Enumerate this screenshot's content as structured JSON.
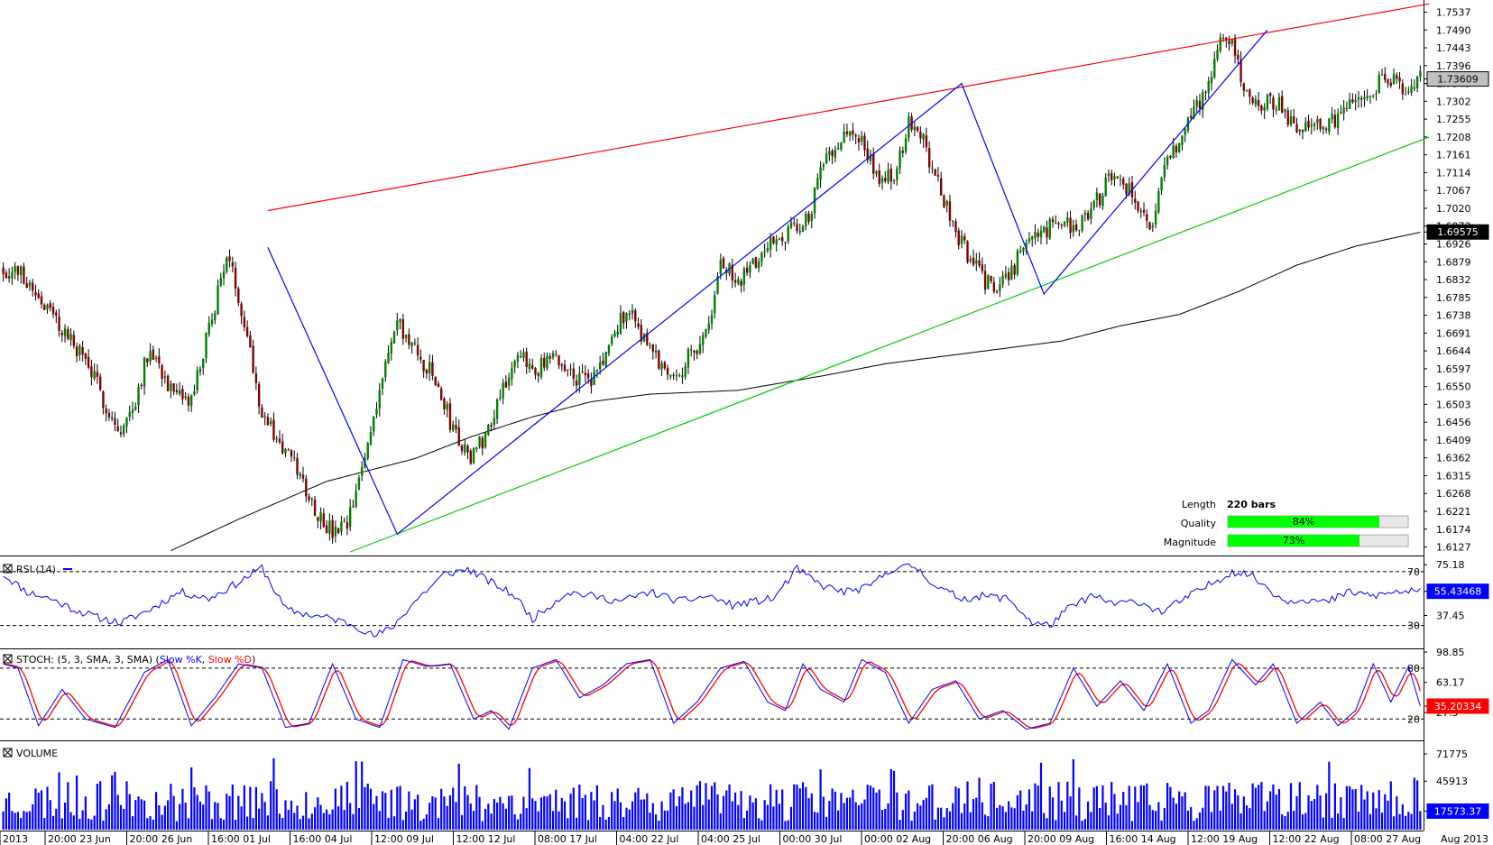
{
  "chart_data": [
    {
      "type": "candlestick",
      "panel": "price",
      "y_ticks": [
        "1.7537",
        "1.7490",
        "1.7443",
        "1.7396",
        "1.7349",
        "1.7302",
        "1.7255",
        "1.7208",
        "1.7161",
        "1.7114",
        "1.7067",
        "1.7020",
        "1.6973",
        "1.6926",
        "1.6879",
        "1.6832",
        "1.6785",
        "1.6738",
        "1.6691",
        "1.6644",
        "1.6597",
        "1.6550",
        "1.6503",
        "1.6456",
        "1.6409",
        "1.6362",
        "1.6315",
        "1.6268",
        "1.6221",
        "1.6174",
        "1.6127"
      ],
      "ylim": [
        1.6114,
        1.7562
      ],
      "bars_count": 220,
      "price_tag": "1.73609",
      "ma_tag": "1.69575",
      "last_price": 1.73609,
      "ma_last": 1.69575,
      "anchor_closes": [
        [
          0,
          1.686
        ],
        [
          6,
          1.685
        ],
        [
          12,
          1.679
        ],
        [
          20,
          1.67
        ],
        [
          28,
          1.662
        ],
        [
          35,
          1.65
        ],
        [
          40,
          1.642
        ],
        [
          45,
          1.652
        ],
        [
          50,
          1.666
        ],
        [
          58,
          1.652
        ],
        [
          64,
          1.651
        ],
        [
          70,
          1.67
        ],
        [
          76,
          1.69
        ],
        [
          82,
          1.673
        ],
        [
          88,
          1.648
        ],
        [
          94,
          1.64
        ],
        [
          100,
          1.633
        ],
        [
          106,
          1.623
        ],
        [
          112,
          1.616
        ],
        [
          117,
          1.618
        ],
        [
          122,
          1.633
        ],
        [
          128,
          1.655
        ],
        [
          134,
          1.672
        ],
        [
          140,
          1.664
        ],
        [
          146,
          1.658
        ],
        [
          152,
          1.646
        ],
        [
          158,
          1.636
        ],
        [
          164,
          1.642
        ],
        [
          170,
          1.656
        ],
        [
          176,
          1.662
        ],
        [
          182,
          1.66
        ],
        [
          188,
          1.662
        ],
        [
          194,
          1.658
        ],
        [
          200,
          1.656
        ],
        [
          206,
          1.665
        ],
        [
          212,
          1.676
        ],
        [
          218,
          1.668
        ],
        [
          224,
          1.66
        ],
        [
          230,
          1.659
        ],
        [
          236,
          1.666
        ],
        [
          240,
          1.67
        ],
        [
          244,
          1.688
        ],
        [
          250,
          1.682
        ],
        [
          256,
          1.688
        ],
        [
          262,
          1.694
        ],
        [
          268,
          1.696
        ],
        [
          274,
          1.7
        ],
        [
          280,
          1.716
        ],
        [
          286,
          1.722
        ],
        [
          292,
          1.72
        ],
        [
          298,
          1.708
        ],
        [
          304,
          1.712
        ],
        [
          308,
          1.726
        ],
        [
          312,
          1.722
        ],
        [
          318,
          1.708
        ],
        [
          324,
          1.696
        ],
        [
          330,
          1.687
        ],
        [
          336,
          1.681
        ],
        [
          342,
          1.684
        ],
        [
          348,
          1.693
        ],
        [
          354,
          1.696
        ],
        [
          360,
          1.698
        ],
        [
          366,
          1.697
        ],
        [
          372,
          1.704
        ],
        [
          378,
          1.712
        ],
        [
          384,
          1.706
        ],
        [
          390,
          1.697
        ],
        [
          396,
          1.714
        ],
        [
          402,
          1.723
        ],
        [
          408,
          1.732
        ],
        [
          414,
          1.745
        ],
        [
          418,
          1.746
        ],
        [
          422,
          1.733
        ],
        [
          428,
          1.73
        ],
        [
          434,
          1.729
        ],
        [
          440,
          1.724
        ],
        [
          446,
          1.723
        ],
        [
          452,
          1.725
        ],
        [
          458,
          1.729
        ],
        [
          464,
          1.732
        ],
        [
          470,
          1.737
        ],
        [
          476,
          1.733
        ],
        [
          482,
          1.7361
        ]
      ],
      "ma_anchors": [
        [
          55,
          1.611
        ],
        [
          80,
          1.62
        ],
        [
          110,
          1.63
        ],
        [
          140,
          1.636
        ],
        [
          160,
          1.642
        ],
        [
          180,
          1.647
        ],
        [
          200,
          1.651
        ],
        [
          220,
          1.653
        ],
        [
          250,
          1.654
        ],
        [
          280,
          1.658
        ],
        [
          300,
          1.661
        ],
        [
          330,
          1.664
        ],
        [
          360,
          1.667
        ],
        [
          380,
          1.671
        ],
        [
          400,
          1.674
        ],
        [
          420,
          1.68
        ],
        [
          440,
          1.687
        ],
        [
          460,
          1.692
        ],
        [
          482,
          1.6957
        ]
      ],
      "pattern_lines": {
        "resistance": {
          "color": "#ff0000",
          "points": [
            [
              90,
              1.7014
            ],
            [
              485,
              1.7559
            ]
          ]
        },
        "support": {
          "color": "#00cc00",
          "points": [
            [
              118,
              1.6114
            ],
            [
              485,
              1.7208
            ]
          ]
        },
        "zigzag": {
          "color": "#0000ff",
          "points": [
            [
              90,
              1.6917
            ],
            [
              134,
              1.6161
            ],
            [
              326,
              1.7349
            ],
            [
              354,
              1.6794
            ],
            [
              430,
              1.749
            ]
          ]
        }
      },
      "pattern_info": {
        "length_label": "Length",
        "length_value": "220 bars",
        "quality_label": "Quality",
        "quality_value": "84%",
        "quality_fraction": 0.84,
        "magnitude_label": "Magnitude",
        "magnitude_value": "73%",
        "magnitude_fraction": 0.73
      }
    },
    {
      "type": "line",
      "panel": "rsi",
      "title": "RSI (14)",
      "ylim": [
        15,
        80
      ],
      "y_ticks": [
        "75.18",
        "37.45"
      ],
      "levels": [
        70,
        30
      ],
      "level_labels": [
        "70",
        "30"
      ],
      "tag": "55.43468",
      "last": 55.43,
      "anchors": [
        [
          0,
          68
        ],
        [
          8,
          55
        ],
        [
          16,
          50
        ],
        [
          24,
          42
        ],
        [
          32,
          36
        ],
        [
          40,
          32
        ],
        [
          50,
          42
        ],
        [
          60,
          55
        ],
        [
          70,
          50
        ],
        [
          80,
          62
        ],
        [
          88,
          73
        ],
        [
          96,
          42
        ],
        [
          104,
          38
        ],
        [
          112,
          35
        ],
        [
          120,
          30
        ],
        [
          126,
          22
        ],
        [
          132,
          28
        ],
        [
          140,
          48
        ],
        [
          150,
          68
        ],
        [
          158,
          72
        ],
        [
          166,
          62
        ],
        [
          174,
          52
        ],
        [
          180,
          35
        ],
        [
          186,
          45
        ],
        [
          192,
          55
        ],
        [
          200,
          52
        ],
        [
          210,
          48
        ],
        [
          220,
          55
        ],
        [
          230,
          48
        ],
        [
          240,
          52
        ],
        [
          248,
          45
        ],
        [
          256,
          48
        ],
        [
          262,
          50
        ],
        [
          270,
          72
        ],
        [
          278,
          60
        ],
        [
          286,
          55
        ],
        [
          294,
          58
        ],
        [
          302,
          72
        ],
        [
          310,
          74
        ],
        [
          318,
          58
        ],
        [
          326,
          50
        ],
        [
          334,
          52
        ],
        [
          342,
          50
        ],
        [
          350,
          32
        ],
        [
          356,
          30
        ],
        [
          362,
          42
        ],
        [
          370,
          52
        ],
        [
          378,
          46
        ],
        [
          386,
          48
        ],
        [
          394,
          40
        ],
        [
          402,
          50
        ],
        [
          410,
          60
        ],
        [
          418,
          70
        ],
        [
          424,
          68
        ],
        [
          430,
          58
        ],
        [
          436,
          48
        ],
        [
          442,
          50
        ],
        [
          450,
          47
        ],
        [
          458,
          55
        ],
        [
          466,
          52
        ],
        [
          474,
          55
        ],
        [
          482,
          55.43
        ]
      ]
    },
    {
      "type": "line",
      "panel": "stochastic",
      "title": "STOCH: (5, 3, SMA, 3, SMA)",
      "legend": [
        "Slow %K",
        "Slow %D"
      ],
      "series_colors": [
        "#0000ff",
        "#ff0000"
      ],
      "ylim": [
        -2,
        100
      ],
      "y_ticks": [
        "98.85",
        "63.17",
        "27.5"
      ],
      "levels": [
        80,
        20
      ],
      "level_labels": [
        "80",
        "20"
      ],
      "tag": "35.20334",
      "last_k": 35.2,
      "turning_points": [
        [
          0,
          85
        ],
        [
          5,
          80
        ],
        [
          12,
          12
        ],
        [
          20,
          55
        ],
        [
          28,
          20
        ],
        [
          38,
          10
        ],
        [
          48,
          75
        ],
        [
          56,
          90
        ],
        [
          64,
          12
        ],
        [
          72,
          45
        ],
        [
          80,
          85
        ],
        [
          88,
          80
        ],
        [
          96,
          10
        ],
        [
          104,
          15
        ],
        [
          112,
          85
        ],
        [
          120,
          20
        ],
        [
          128,
          10
        ],
        [
          136,
          90
        ],
        [
          144,
          82
        ],
        [
          152,
          85
        ],
        [
          160,
          20
        ],
        [
          166,
          30
        ],
        [
          172,
          8
        ],
        [
          180,
          80
        ],
        [
          188,
          90
        ],
        [
          196,
          45
        ],
        [
          204,
          60
        ],
        [
          212,
          85
        ],
        [
          220,
          90
        ],
        [
          228,
          15
        ],
        [
          236,
          40
        ],
        [
          244,
          80
        ],
        [
          252,
          88
        ],
        [
          260,
          40
        ],
        [
          266,
          30
        ],
        [
          272,
          85
        ],
        [
          278,
          55
        ],
        [
          286,
          40
        ],
        [
          292,
          90
        ],
        [
          300,
          75
        ],
        [
          308,
          15
        ],
        [
          316,
          55
        ],
        [
          324,
          65
        ],
        [
          332,
          20
        ],
        [
          340,
          30
        ],
        [
          348,
          8
        ],
        [
          356,
          15
        ],
        [
          364,
          80
        ],
        [
          372,
          35
        ],
        [
          380,
          65
        ],
        [
          388,
          30
        ],
        [
          396,
          85
        ],
        [
          404,
          15
        ],
        [
          410,
          30
        ],
        [
          418,
          90
        ],
        [
          426,
          60
        ],
        [
          432,
          85
        ],
        [
          440,
          15
        ],
        [
          448,
          40
        ],
        [
          454,
          12
        ],
        [
          460,
          30
        ],
        [
          466,
          85
        ],
        [
          472,
          40
        ],
        [
          478,
          82
        ],
        [
          482,
          35.2
        ]
      ]
    },
    {
      "type": "bar",
      "panel": "volume",
      "title": "VOLUME",
      "ylim": [
        0,
        82000
      ],
      "y_ticks": [
        "71775",
        "45913"
      ],
      "tag": "17573.37",
      "last": 17573.37
    }
  ],
  "x_axis": {
    "labels": [
      "2013",
      "20:00 23 Jun",
      "20:00 26 Jun",
      "16:00 01 Jul",
      "16:00 04 Jul",
      "12:00 09 Jul",
      "12:00 12 Jul",
      "08:00 17 Jul",
      "04:00 22 Jul",
      "04:00 25 Jul",
      "00:00 30 Jul",
      "00:00 02 Aug",
      "20:00 06 Aug",
      "20:00 09 Aug",
      "16:00 14 Aug",
      "12:00 19 Aug",
      "12:00 22 Aug",
      "08:00 27 Aug"
    ],
    "right_label": "Aug 2013"
  },
  "colors": {
    "bull": "#008000",
    "bear": "#800000",
    "ma": "#000000",
    "rsi": "#0000ff",
    "volume": "#0000ff",
    "tag_blue": "#0000ff",
    "tag_red": "#ff0000",
    "tag_gray": "#c0c0c0",
    "tag_dark": "#000000",
    "progress_fill": "#00ff00"
  }
}
